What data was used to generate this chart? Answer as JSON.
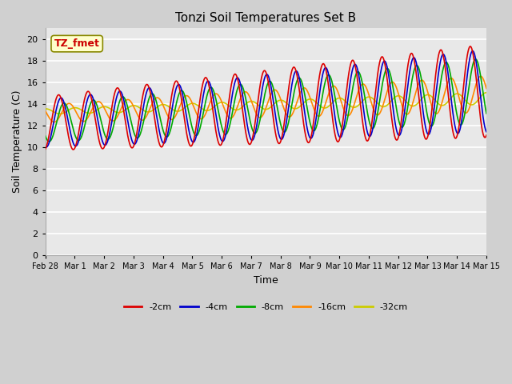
{
  "title": "Tonzi Soil Temperatures Set B",
  "xlabel": "Time",
  "ylabel": "Soil Temperature (C)",
  "xlim_days": [
    0,
    15
  ],
  "ylim": [
    0,
    21
  ],
  "yticks": [
    0,
    2,
    4,
    6,
    8,
    10,
    12,
    14,
    16,
    18,
    20
  ],
  "xtick_labels": [
    "Feb 28",
    "Mar 1",
    "Mar 2",
    "Mar 3",
    "Mar 4",
    "Mar 5",
    "Mar 6",
    "Mar 7",
    "Mar 8",
    "Mar 9",
    "Mar 10",
    "Mar 11",
    "Mar 12",
    "Mar 13",
    "Mar 14",
    "Mar 15"
  ],
  "xtick_positions": [
    0,
    1,
    2,
    3,
    4,
    5,
    6,
    7,
    8,
    9,
    10,
    11,
    12,
    13,
    14,
    15
  ],
  "series": {
    "-2cm": {
      "color": "#dd0000",
      "lw": 1.2
    },
    "-4cm": {
      "color": "#0000cc",
      "lw": 1.2
    },
    "-8cm": {
      "color": "#00aa00",
      "lw": 1.2
    },
    "-16cm": {
      "color": "#ff8800",
      "lw": 1.2
    },
    "-32cm": {
      "color": "#cccc00",
      "lw": 1.2
    }
  },
  "annotation_text": "TZ_fmet",
  "annotation_color": "#cc0000",
  "annotation_bg": "#ffffcc",
  "annotation_border": "#888800",
  "fig_bg": "#d0d0d0",
  "plot_bg": "#e8e8e8"
}
